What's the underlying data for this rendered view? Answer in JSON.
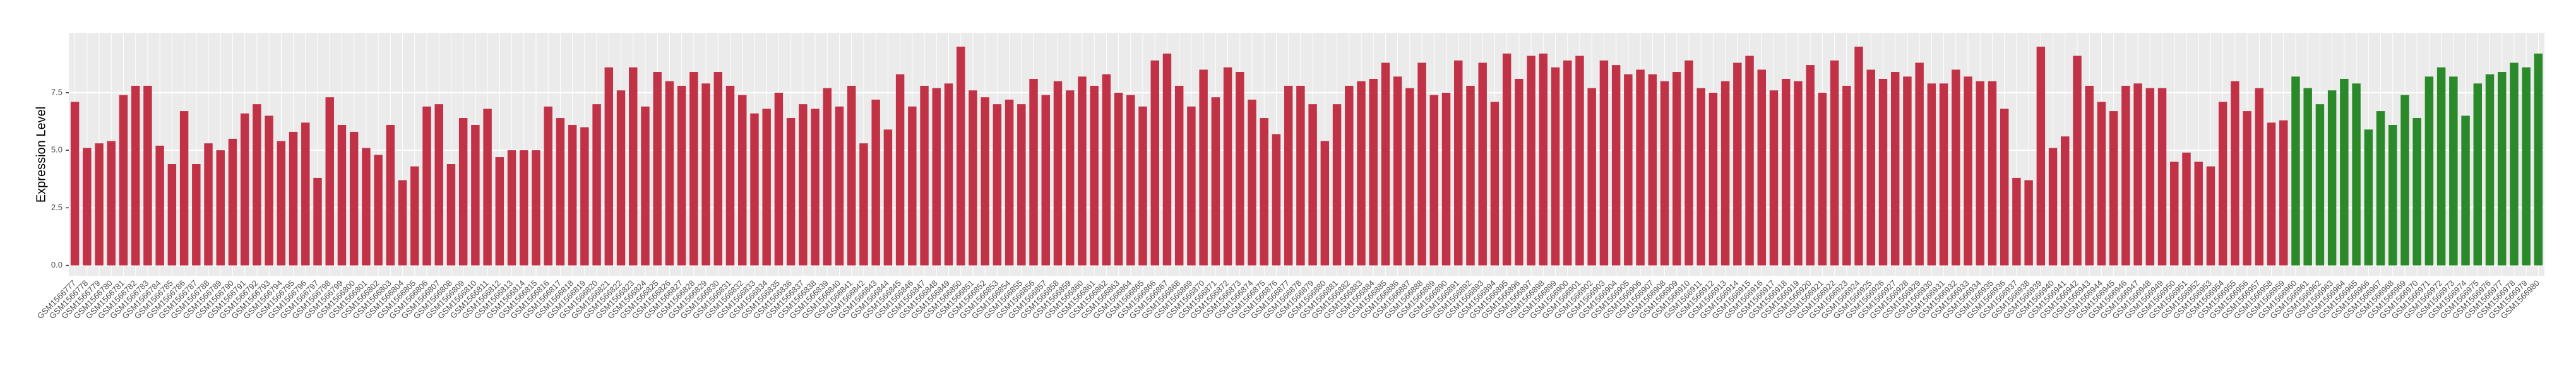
{
  "chart_data": {
    "type": "bar",
    "y_label": "Expression Level",
    "categories": [
      "GSM1566777",
      "GSM1566778",
      "GSM1566779",
      "GSM1566780",
      "GSM1566781",
      "GSM1566782",
      "GSM1566783",
      "GSM1566784",
      "GSM1566785",
      "GSM1566786",
      "GSM1566787",
      "GSM1566788",
      "GSM1566789",
      "GSM1566790",
      "GSM1566791",
      "GSM1566792",
      "GSM1566793",
      "GSM1566794",
      "GSM1566795",
      "GSM1566796",
      "GSM1566797",
      "GSM1566798",
      "GSM1566799",
      "GSM1566800",
      "GSM1566801",
      "GSM1566802",
      "GSM1566803",
      "GSM1566804",
      "GSM1566805",
      "GSM1566806",
      "GSM1566807",
      "GSM1566808",
      "GSM1566809",
      "GSM1566810",
      "GSM1566811",
      "GSM1566812",
      "GSM1566813",
      "GSM1566814",
      "GSM1566815",
      "GSM1566816",
      "GSM1566817",
      "GSM1566818",
      "GSM1566819",
      "GSM1566820",
      "GSM1566821",
      "GSM1566822",
      "GSM1566823",
      "GSM1566824",
      "GSM1566825",
      "GSM1566826",
      "GSM1566827",
      "GSM1566828",
      "GSM1566829",
      "GSM1566830",
      "GSM1566831",
      "GSM1566832",
      "GSM1566833",
      "GSM1566834",
      "GSM1566835",
      "GSM1566836",
      "GSM1566837",
      "GSM1566838",
      "GSM1566839",
      "GSM1566840",
      "GSM1566841",
      "GSM1566842",
      "GSM1566843",
      "GSM1566844",
      "GSM1566845",
      "GSM1566846",
      "GSM1566847",
      "GSM1566848",
      "GSM1566849",
      "GSM1566850",
      "GSM1566851",
      "GSM1566852",
      "GSM1566853",
      "GSM1566854",
      "GSM1566855",
      "GSM1566856",
      "GSM1566857",
      "GSM1566858",
      "GSM1566859",
      "GSM1566860",
      "GSM1566861",
      "GSM1566862",
      "GSM1566863",
      "GSM1566864",
      "GSM1566865",
      "GSM1566866",
      "GSM1566867",
      "GSM1566868",
      "GSM1566869",
      "GSM1566870",
      "GSM1566871",
      "GSM1566872",
      "GSM1566873",
      "GSM1566874",
      "GSM1566875",
      "GSM1566876",
      "GSM1566877",
      "GSM1566878",
      "GSM1566879",
      "GSM1566880",
      "GSM1566881",
      "GSM1566882",
      "GSM1566883",
      "GSM1566884",
      "GSM1566885",
      "GSM1566886",
      "GSM1566887",
      "GSM1566888",
      "GSM1566889",
      "GSM1566890",
      "GSM1566891",
      "GSM1566892",
      "GSM1566893",
      "GSM1566894",
      "GSM1566895",
      "GSM1566896",
      "GSM1566897",
      "GSM1566898",
      "GSM1566899",
      "GSM1566900",
      "GSM1566901",
      "GSM1566902",
      "GSM1566903",
      "GSM1566904",
      "GSM1566905",
      "GSM1566906",
      "GSM1566907",
      "GSM1566908",
      "GSM1566909",
      "GSM1566910",
      "GSM1566911",
      "GSM1566912",
      "GSM1566913",
      "GSM1566914",
      "GSM1566915",
      "GSM1566916",
      "GSM1566917",
      "GSM1566918",
      "GSM1566919",
      "GSM1566920",
      "GSM1566921",
      "GSM1566922",
      "GSM1566923",
      "GSM1566924",
      "GSM1566925",
      "GSM1566926",
      "GSM1566927",
      "GSM1566928",
      "GSM1566929",
      "GSM1566930",
      "GSM1566931",
      "GSM1566932",
      "GSM1566933",
      "GSM1566934",
      "GSM1566935",
      "GSM1566936",
      "GSM1566937",
      "GSM1566938",
      "GSM1566939",
      "GSM1566940",
      "GSM1566941",
      "GSM1566942",
      "GSM1566943",
      "GSM1566944",
      "GSM1566945",
      "GSM1566946",
      "GSM1566947",
      "GSM1566948",
      "GSM1566949",
      "GSM1566950",
      "GSM1566951",
      "GSM1566952",
      "GSM1566953",
      "GSM1566954",
      "GSM1566955",
      "GSM1566956",
      "GSM1566957",
      "GSM1566958",
      "GSM1566959",
      "GSM1566960",
      "GSM1566961",
      "GSM1566962",
      "GSM1566963",
      "GSM1566964",
      "GSM1566965",
      "GSM1566966",
      "GSM1566967",
      "GSM1566968",
      "GSM1566969",
      "GSM1566970",
      "GSM1566971",
      "GSM1566972",
      "GSM1566973",
      "GSM1566974",
      "GSM1566975",
      "GSM1566976",
      "GSM1566977",
      "GSM1566978",
      "GSM1566979",
      "GSM1566980"
    ],
    "values": [
      7.1,
      5.1,
      5.3,
      5.4,
      7.4,
      7.8,
      7.8,
      5.2,
      4.4,
      6.7,
      4.4,
      5.3,
      5.0,
      5.5,
      6.6,
      7.0,
      6.5,
      5.4,
      5.8,
      6.2,
      3.8,
      7.3,
      6.1,
      5.8,
      5.1,
      4.8,
      6.1,
      3.7,
      4.3,
      6.9,
      7.0,
      4.4,
      6.4,
      6.1,
      6.8,
      4.7,
      5.0,
      5.0,
      5.0,
      6.9,
      6.4,
      6.1,
      6.0,
      7.0,
      8.6,
      7.6,
      8.6,
      6.9,
      8.4,
      8.0,
      7.8,
      8.4,
      7.9,
      8.4,
      7.8,
      7.4,
      6.6,
      6.8,
      7.5,
      6.4,
      7.0,
      6.8,
      7.7,
      6.9,
      7.8,
      5.3,
      7.2,
      5.9,
      8.3,
      6.9,
      7.8,
      7.7,
      7.9,
      9.5,
      7.6,
      7.3,
      7.0,
      7.2,
      7.0,
      8.1,
      7.4,
      8.0,
      7.6,
      8.2,
      7.8,
      8.3,
      7.5,
      7.4,
      6.9,
      8.9,
      9.2,
      7.8,
      6.9,
      8.5,
      7.3,
      8.6,
      8.4,
      7.2,
      6.4,
      5.7,
      7.8,
      7.8,
      7.0,
      5.4,
      7.0,
      7.8,
      8.0,
      8.1,
      8.8,
      8.2,
      7.7,
      8.8,
      7.4,
      7.5,
      8.9,
      7.8,
      8.8,
      7.1,
      9.2,
      8.1,
      9.1,
      9.2,
      8.6,
      8.9,
      9.1,
      7.7,
      8.9,
      8.7,
      8.3,
      8.5,
      8.3,
      8.0,
      8.4,
      8.9,
      7.7,
      7.5,
      8.0,
      8.8,
      9.1,
      8.5,
      7.6,
      8.1,
      8.0,
      8.7,
      7.5,
      8.9,
      7.8,
      9.5,
      8.5,
      8.1,
      8.4,
      8.2,
      8.8,
      7.9,
      7.9,
      8.5,
      8.2,
      8.0,
      8.0,
      6.8,
      3.8,
      3.7,
      9.5,
      5.1,
      5.6,
      9.1,
      7.8,
      7.1,
      6.7,
      7.8,
      7.9,
      7.7,
      7.7,
      4.5,
      4.9,
      4.5,
      4.3,
      7.1,
      8.0,
      6.7,
      7.7,
      6.2,
      6.3,
      8.2,
      7.7,
      7.0,
      7.6,
      8.1,
      7.9,
      5.9,
      6.7,
      6.1,
      7.4,
      6.4,
      8.2,
      8.6,
      8.2,
      6.5,
      7.9,
      8.3,
      8.4,
      8.8,
      8.6,
      9.2
    ],
    "colors": [
      "#c23246",
      "#c23246",
      "#c23246",
      "#c23246",
      "#c23246",
      "#c23246",
      "#c23246",
      "#c23246",
      "#c23246",
      "#c23246",
      "#c23246",
      "#c23246",
      "#c23246",
      "#c23246",
      "#c23246",
      "#c23246",
      "#c23246",
      "#c23246",
      "#c23246",
      "#c23246",
      "#c23246",
      "#c23246",
      "#c23246",
      "#c23246",
      "#c23246",
      "#c23246",
      "#c23246",
      "#c23246",
      "#c23246",
      "#c23246",
      "#c23246",
      "#c23246",
      "#c23246",
      "#c23246",
      "#c23246",
      "#c23246",
      "#c23246",
      "#c23246",
      "#c23246",
      "#c23246",
      "#c23246",
      "#c23246",
      "#c23246",
      "#c23246",
      "#c23246",
      "#c23246",
      "#c23246",
      "#c23246",
      "#c23246",
      "#c23246",
      "#c23246",
      "#c23246",
      "#c23246",
      "#c23246",
      "#c23246",
      "#c23246",
      "#c23246",
      "#c23246",
      "#c23246",
      "#c23246",
      "#c23246",
      "#c23246",
      "#c23246",
      "#c23246",
      "#c23246",
      "#c23246",
      "#c23246",
      "#c23246",
      "#c23246",
      "#c23246",
      "#c23246",
      "#c23246",
      "#c23246",
      "#c23246",
      "#c23246",
      "#c23246",
      "#c23246",
      "#c23246",
      "#c23246",
      "#c23246",
      "#c23246",
      "#c23246",
      "#c23246",
      "#c23246",
      "#c23246",
      "#c23246",
      "#c23246",
      "#c23246",
      "#c23246",
      "#c23246",
      "#c23246",
      "#c23246",
      "#c23246",
      "#c23246",
      "#c23246",
      "#c23246",
      "#c23246",
      "#c23246",
      "#c23246",
      "#c23246",
      "#c23246",
      "#c23246",
      "#c23246",
      "#c23246",
      "#c23246",
      "#c23246",
      "#c23246",
      "#c23246",
      "#c23246",
      "#c23246",
      "#c23246",
      "#c23246",
      "#c23246",
      "#c23246",
      "#c23246",
      "#c23246",
      "#c23246",
      "#c23246",
      "#c23246",
      "#c23246",
      "#c23246",
      "#c23246",
      "#c23246",
      "#c23246",
      "#c23246",
      "#c23246",
      "#c23246",
      "#c23246",
      "#c23246",
      "#c23246",
      "#c23246",
      "#c23246",
      "#c23246",
      "#c23246",
      "#c23246",
      "#c23246",
      "#c23246",
      "#c23246",
      "#c23246",
      "#c23246",
      "#c23246",
      "#c23246",
      "#c23246",
      "#c23246",
      "#c23246",
      "#c23246",
      "#c23246",
      "#c23246",
      "#c23246",
      "#c23246",
      "#c23246",
      "#c23246",
      "#c23246",
      "#c23246",
      "#c23246",
      "#c23246",
      "#c23246",
      "#c23246",
      "#c23246",
      "#c23246",
      "#c23246",
      "#c23246",
      "#c23246",
      "#c23246",
      "#c23246",
      "#c23246",
      "#c23246",
      "#c23246",
      "#c23246",
      "#c23246",
      "#c23246",
      "#c23246",
      "#c23246",
      "#c23246",
      "#c23246",
      "#c23246",
      "#c23246",
      "#c23246",
      "#c23246",
      "#c23246",
      "#c23246",
      "#c23246",
      "#c23246",
      "#2a8a2a",
      "#2a8a2a",
      "#2a8a2a",
      "#2a8a2a",
      "#2a8a2a",
      "#2a8a2a",
      "#2a8a2a",
      "#2a8a2a",
      "#2a8a2a",
      "#2a8a2a",
      "#2a8a2a",
      "#2a8a2a",
      "#2a8a2a",
      "#2a8a2a",
      "#2a8a2a",
      "#2a8a2a",
      "#2a8a2a",
      "#2a8a2a",
      "#2a8a2a",
      "#2a8a2a",
      "#2a8a2a"
    ],
    "ylim": [
      -0.45,
      10.1
    ],
    "yticks": [
      {
        "value": 0,
        "label": "0.0"
      },
      2.5,
      {
        "value": 5,
        "label": "5.0"
      },
      7.5
    ],
    "grid": true
  }
}
